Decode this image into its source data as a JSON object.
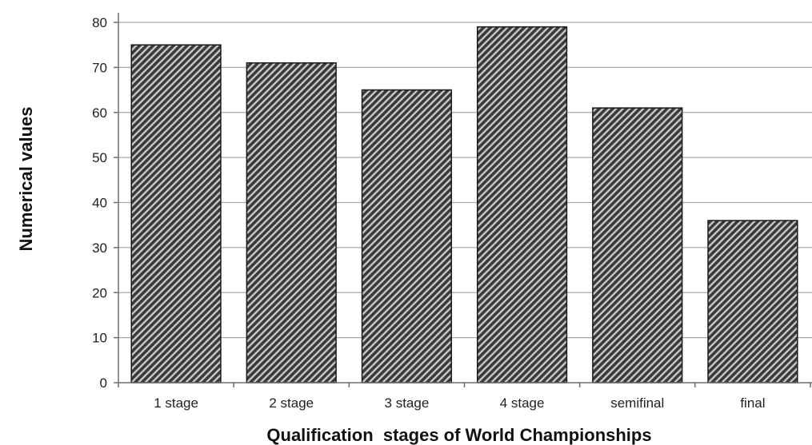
{
  "chart_data": {
    "type": "bar",
    "categories": [
      "1 stage",
      "2 stage",
      "3 stage",
      "4 stage",
      "semifinal",
      "final"
    ],
    "values": [
      75,
      71,
      65,
      79,
      61,
      36
    ],
    "title": "",
    "xlabel": "Qualification  stages of World Championships",
    "ylabel": "Numerical values",
    "ylim": [
      0,
      80
    ],
    "yticks": [
      0,
      10,
      20,
      30,
      40,
      50,
      60,
      70,
      80
    ],
    "grid": true,
    "bar_fill": "diagonal-hatch",
    "colors": {
      "bar_dark": "#3a3a3a",
      "bar_light": "#c8c8c8",
      "bar_border": "#1a1a1a",
      "grid": "#a8a8a8",
      "axis": "#6e6e6e"
    }
  }
}
